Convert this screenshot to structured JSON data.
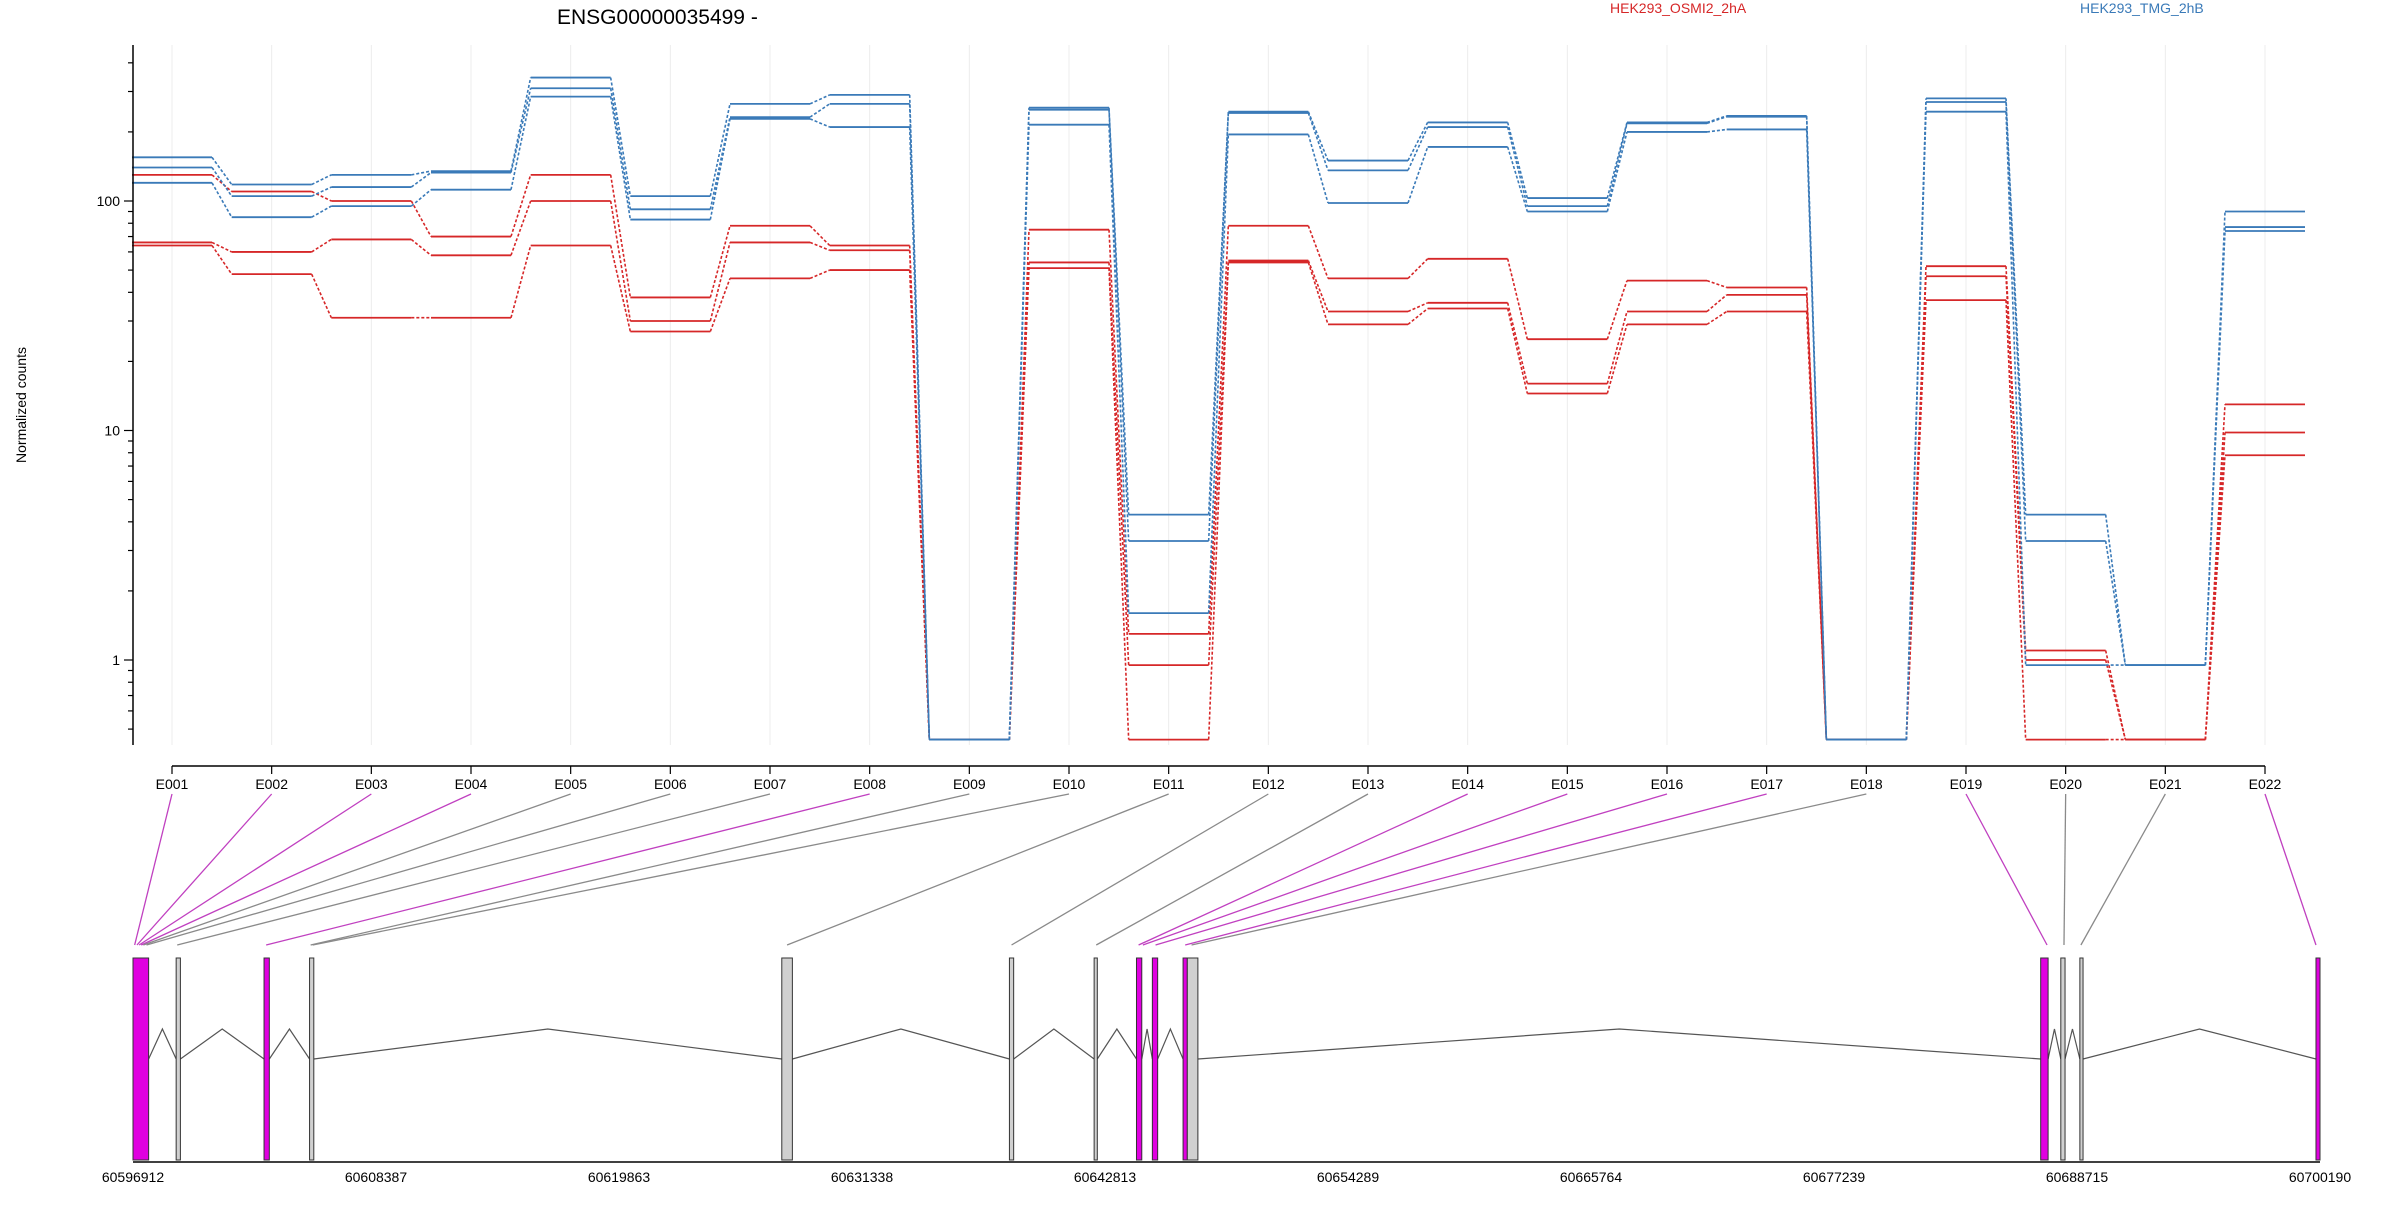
{
  "chart_data": {
    "type": "line",
    "title": "ENSG00000035499 -",
    "ylabel": "Normalized counts",
    "xlabel": "",
    "yscale": "log",
    "ylim": [
      0.45,
      400
    ],
    "yticks": [
      1,
      10,
      100
    ],
    "grid": true,
    "legend_position": "top-right",
    "categories": [
      "E001",
      "E002",
      "E003",
      "E004",
      "E005",
      "E006",
      "E007",
      "E008",
      "E009",
      "E010",
      "E011",
      "E012",
      "E013",
      "E014",
      "E015",
      "E016",
      "E017",
      "E018",
      "E019",
      "E020",
      "E021",
      "E022"
    ],
    "series": [
      {
        "name": "HEK293_OSMI2_2hA",
        "group": "HEK293_OSMI2_2hA",
        "color": "#d62728",
        "values": [
          130,
          110,
          100,
          70,
          130,
          38,
          78,
          64,
          0.45,
          75,
          1.3,
          78,
          46,
          56,
          25,
          45,
          42,
          0.45,
          52,
          1.1,
          0.45,
          13
        ]
      },
      {
        "name": "HEK293_OSMI2_2hA (rep 2)",
        "group": "HEK293_OSMI2_2hA",
        "color": "#d62728",
        "values": [
          66,
          60,
          68,
          58,
          100,
          30,
          66,
          61,
          0.45,
          54,
          0.95,
          55,
          33,
          36,
          16,
          33,
          39,
          0.45,
          47,
          1.0,
          0.45,
          9.8
        ]
      },
      {
        "name": "HEK293_OSMI2_2hA (rep 3)",
        "group": "HEK293_OSMI2_2hA",
        "color": "#d62728",
        "values": [
          64,
          48,
          31,
          31,
          64,
          27,
          46,
          50,
          0.45,
          51,
          0.45,
          54,
          29,
          34,
          14.5,
          29,
          33,
          0.45,
          37,
          0.45,
          0.45,
          7.8
        ]
      },
      {
        "name": "HEK293_TMG_2hB",
        "group": "HEK293_TMG_2hB",
        "color": "#3a7ab8",
        "values": [
          155,
          118,
          130,
          135,
          345,
          105,
          265,
          290,
          0.45,
          255,
          4.3,
          245,
          150,
          220,
          103,
          220,
          235,
          0.45,
          280,
          4.3,
          0.95,
          90
        ]
      },
      {
        "name": "HEK293_TMG_2hB (rep 2)",
        "group": "HEK293_TMG_2hB",
        "color": "#3a7ab8",
        "values": [
          140,
          105,
          115,
          133,
          310,
          92,
          232,
          265,
          0.45,
          250,
          3.3,
          242,
          136,
          210,
          95,
          218,
          233,
          0.45,
          270,
          3.3,
          0.95,
          77
        ]
      },
      {
        "name": "HEK293_TMG_2hB (rep 3)",
        "group": "HEK293_TMG_2hB",
        "color": "#3a7ab8",
        "values": [
          120,
          85,
          95,
          112,
          285,
          83,
          228,
          210,
          0.45,
          215,
          1.6,
          195,
          98,
          172,
          90,
          200,
          205,
          0.45,
          245,
          0.95,
          0.95,
          74
        ]
      }
    ],
    "legend": [
      {
        "label": "HEK293_OSMI2_2hA",
        "color": "#d62728"
      },
      {
        "label": "HEK293_TMG_2hB",
        "color": "#3a7ab8"
      }
    ]
  },
  "gene_model": {
    "coordinate_labels": [
      "60596912",
      "60608387",
      "60619863",
      "60631338",
      "60642813",
      "60654289",
      "60665764",
      "60677239",
      "60688715",
      "60700190"
    ],
    "highlight_color": "#e000e0",
    "exon_mappings": [
      {
        "exon": "E001",
        "genomic_pos": 60596990,
        "highlighted": true
      },
      {
        "exon": "E002",
        "genomic_pos": 60597100,
        "highlighted": true
      },
      {
        "exon": "E003",
        "genomic_pos": 60597200,
        "highlighted": true
      },
      {
        "exon": "E004",
        "genomic_pos": 60597300,
        "highlighted": true
      },
      {
        "exon": "E005",
        "genomic_pos": 60597400,
        "highlighted": false
      },
      {
        "exon": "E006",
        "genomic_pos": 60597550,
        "highlighted": false
      },
      {
        "exon": "E007",
        "genomic_pos": 60599000,
        "highlighted": false
      },
      {
        "exon": "E008",
        "genomic_pos": 60603200,
        "highlighted": true
      },
      {
        "exon": "E009",
        "genomic_pos": 60605300,
        "highlighted": false
      },
      {
        "exon": "E010",
        "genomic_pos": 60605400,
        "highlighted": false
      },
      {
        "exon": "E011",
        "genomic_pos": 60627800,
        "highlighted": false
      },
      {
        "exon": "E012",
        "genomic_pos": 60638400,
        "highlighted": false
      },
      {
        "exon": "E013",
        "genomic_pos": 60642400,
        "highlighted": false
      },
      {
        "exon": "E014",
        "genomic_pos": 60644400,
        "highlighted": true
      },
      {
        "exon": "E015",
        "genomic_pos": 60644600,
        "highlighted": true
      },
      {
        "exon": "E016",
        "genomic_pos": 60645200,
        "highlighted": true
      },
      {
        "exon": "E017",
        "genomic_pos": 60646600,
        "highlighted": true
      },
      {
        "exon": "E018",
        "genomic_pos": 60646900,
        "highlighted": false
      },
      {
        "exon": "E019",
        "genomic_pos": 60687300,
        "highlighted": true
      },
      {
        "exon": "E020",
        "genomic_pos": 60688100,
        "highlighted": false
      },
      {
        "exon": "E021",
        "genomic_pos": 60688900,
        "highlighted": false
      },
      {
        "exon": "E022",
        "genomic_pos": 60700000,
        "highlighted": true
      }
    ],
    "exon_blocks": [
      {
        "start": 60596912,
        "end": 60597650,
        "highlighted": true
      },
      {
        "start": 60598950,
        "end": 60599150,
        "highlighted": false
      },
      {
        "start": 60603100,
        "end": 60603350,
        "highlighted": true
      },
      {
        "start": 60605250,
        "end": 60605450,
        "highlighted": false
      },
      {
        "start": 60627550,
        "end": 60628050,
        "highlighted": false
      },
      {
        "start": 60638300,
        "end": 60638500,
        "highlighted": false
      },
      {
        "start": 60642300,
        "end": 60642450,
        "highlighted": false
      },
      {
        "start": 60644300,
        "end": 60644550,
        "highlighted": true
      },
      {
        "start": 60645050,
        "end": 60645300,
        "highlighted": true
      },
      {
        "start": 60646500,
        "end": 60646700,
        "highlighted": true
      },
      {
        "start": 60646700,
        "end": 60647200,
        "highlighted": false
      },
      {
        "start": 60687000,
        "end": 60687350,
        "highlighted": true
      },
      {
        "start": 60687950,
        "end": 60688150,
        "highlighted": false
      },
      {
        "start": 60688850,
        "end": 60689000,
        "highlighted": false
      },
      {
        "start": 60700000,
        "end": 60700190,
        "highlighted": true
      }
    ]
  }
}
